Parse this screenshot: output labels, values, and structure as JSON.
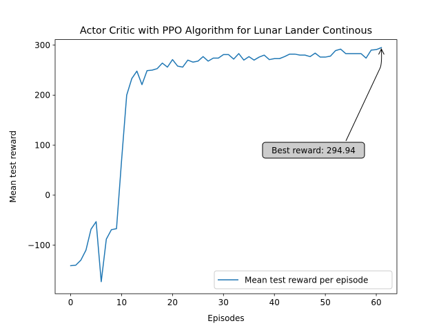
{
  "chart_data": {
    "type": "line",
    "title": "Actor Critic with PPO Algorithm for Lunar Lander Continous",
    "xlabel": "Episodes",
    "ylabel": "Mean test reward",
    "xlim": [
      -3.05,
      64.05
    ],
    "ylim": [
      -197,
      311
    ],
    "xticks": [
      0,
      10,
      20,
      30,
      40,
      50,
      60
    ],
    "yticks": [
      -100,
      0,
      100,
      200,
      300
    ],
    "ytick_labels": [
      "−100",
      "0",
      "100",
      "200",
      "300"
    ],
    "grid": false,
    "legend_position": "lower-right",
    "series": [
      {
        "name": "Mean test reward per episode",
        "color": "#1f77b4",
        "x": [
          0,
          1,
          2,
          3,
          4,
          5,
          6,
          7,
          8,
          9,
          10,
          11,
          12,
          13,
          14,
          15,
          16,
          17,
          18,
          19,
          20,
          21,
          22,
          23,
          24,
          25,
          26,
          27,
          28,
          29,
          30,
          31,
          32,
          33,
          34,
          35,
          36,
          37,
          38,
          39,
          40,
          41,
          42,
          43,
          44,
          45,
          46,
          47,
          48,
          49,
          50,
          51,
          52,
          53,
          54,
          55,
          56,
          57,
          58,
          59,
          60,
          61
        ],
        "y": [
          -141,
          -140,
          -130,
          -110,
          -68,
          -53,
          -173,
          -88,
          -69,
          -67,
          70,
          200,
          233,
          248,
          221,
          249,
          250,
          253,
          264,
          256,
          271,
          258,
          256,
          270,
          266,
          268,
          277,
          268,
          274,
          274,
          281,
          281,
          272,
          283,
          270,
          277,
          270,
          276,
          280,
          271,
          273,
          273,
          277,
          282,
          282,
          280,
          280,
          277,
          284,
          276,
          276,
          278,
          289,
          292,
          283,
          283,
          283,
          283,
          274,
          290,
          291,
          294.94
        ]
      }
    ],
    "annotation": {
      "text": "Best reward: 294.94",
      "target": [
        61,
        294.94
      ],
      "text_anchor": [
        39,
        93
      ]
    }
  }
}
